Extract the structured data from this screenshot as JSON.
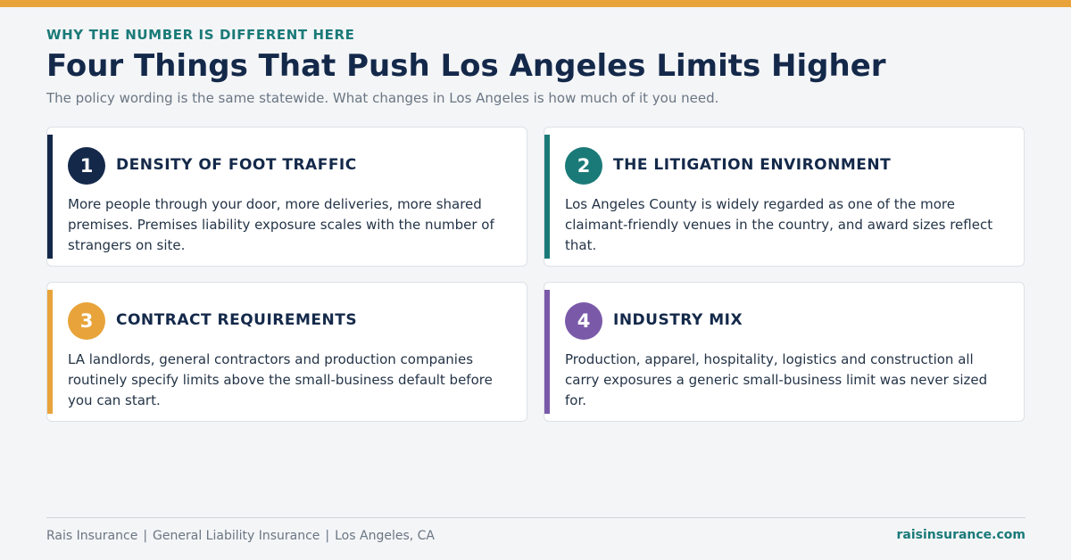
{
  "eyebrow": "WHY THE NUMBER IS DIFFERENT HERE",
  "title": "Four Things That Push Los Angeles Limits Higher",
  "subtitle": "The policy wording is the same statewide. What changes in Los Angeles is how much of it you need.",
  "colors": {
    "top_bar": "#e8a43a",
    "navy": "#14294a",
    "teal": "#1a7a78",
    "amber": "#e8a43a",
    "purple": "#7a5aa8"
  },
  "cards": [
    {
      "number": "1",
      "heading": "DENSITY OF FOOT TRAFFIC",
      "body": "More people through your door, more deliveries, more shared premises. Premises liability exposure scales with the number of strangers on site.",
      "color": "#14294a"
    },
    {
      "number": "2",
      "heading": "THE LITIGATION ENVIRONMENT",
      "body": "Los Angeles County is widely regarded as one of the more claimant-friendly venues in the country, and award sizes reflect that.",
      "color": "#1a7a78"
    },
    {
      "number": "3",
      "heading": "CONTRACT REQUIREMENTS",
      "body": "LA landlords, general contractors and production companies routinely specify limits above the small-business default before you can start.",
      "color": "#e8a43a"
    },
    {
      "number": "4",
      "heading": "INDUSTRY MIX",
      "body": "Production, apparel, hospitality, logistics and construction all carry exposures a generic small-business limit was never sized for.",
      "color": "#7a5aa8"
    }
  ],
  "footer": {
    "brand": "Rais Insurance",
    "product": "General Liability Insurance",
    "location": "Los Angeles, CA",
    "separator": "|",
    "website": "raisinsurance.com"
  }
}
